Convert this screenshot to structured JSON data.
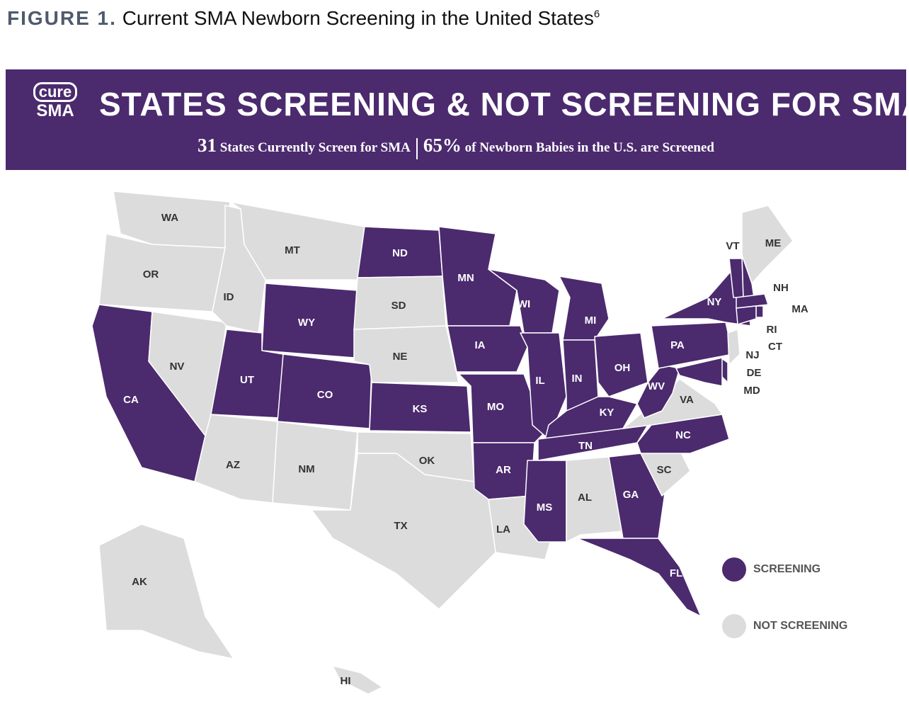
{
  "header": {
    "figure_label": "FIGURE 1.",
    "figure_title": "Current SMA Newborn Screening in the United States",
    "footnote": "6"
  },
  "banner": {
    "logo_top": "cure",
    "logo_bottom": "SMA",
    "title": "STATES SCREENING & NOT SCREENING FOR SMA",
    "states_count": "31",
    "states_text": "States Currently Screen for SMA",
    "babies_percent": "65%",
    "babies_text": "of Newborn Babies in the U.S. are Screened"
  },
  "legend": {
    "items": [
      {
        "label": "SCREENING",
        "color": "#4b2a6e"
      },
      {
        "label": "NOT SCREENING",
        "color": "#dcdcdc"
      }
    ]
  },
  "states": [
    {
      "label": "WA",
      "screening": false
    },
    {
      "label": "OR",
      "screening": false
    },
    {
      "label": "CA",
      "screening": true
    },
    {
      "label": "NV",
      "screening": false
    },
    {
      "label": "ID",
      "screening": false
    },
    {
      "label": "MT",
      "screening": false
    },
    {
      "label": "WY",
      "screening": true
    },
    {
      "label": "UT",
      "screening": true
    },
    {
      "label": "CO",
      "screening": true
    },
    {
      "label": "AZ",
      "screening": false
    },
    {
      "label": "NM",
      "screening": false
    },
    {
      "label": "ND",
      "screening": true
    },
    {
      "label": "SD",
      "screening": false
    },
    {
      "label": "NE",
      "screening": false
    },
    {
      "label": "KS",
      "screening": true
    },
    {
      "label": "OK",
      "screening": false
    },
    {
      "label": "TX",
      "screening": false
    },
    {
      "label": "MN",
      "screening": true
    },
    {
      "label": "IA",
      "screening": true
    },
    {
      "label": "MO",
      "screening": true
    },
    {
      "label": "AR",
      "screening": true
    },
    {
      "label": "LA",
      "screening": false
    },
    {
      "label": "WI",
      "screening": true
    },
    {
      "label": "IL",
      "screening": true
    },
    {
      "label": "MI",
      "screening": true
    },
    {
      "label": "IN",
      "screening": true
    },
    {
      "label": "OH",
      "screening": true
    },
    {
      "label": "KY",
      "screening": true
    },
    {
      "label": "TN",
      "screening": true
    },
    {
      "label": "MS",
      "screening": true
    },
    {
      "label": "AL",
      "screening": false
    },
    {
      "label": "GA",
      "screening": true
    },
    {
      "label": "FL",
      "screening": true
    },
    {
      "label": "SC",
      "screening": false
    },
    {
      "label": "NC",
      "screening": true
    },
    {
      "label": "VA",
      "screening": false
    },
    {
      "label": "WV",
      "screening": true
    },
    {
      "label": "PA",
      "screening": true
    },
    {
      "label": "NY",
      "screening": true
    },
    {
      "label": "VT",
      "screening": true
    },
    {
      "label": "NH",
      "screening": true
    },
    {
      "label": "ME",
      "screening": false
    },
    {
      "label": "MA",
      "screening": true
    },
    {
      "label": "RI",
      "screening": true
    },
    {
      "label": "CT",
      "screening": true
    },
    {
      "label": "NJ",
      "screening": false
    },
    {
      "label": "DE",
      "screening": true
    },
    {
      "label": "MD",
      "screening": true
    },
    {
      "label": "AK",
      "screening": false
    },
    {
      "label": "HI",
      "screening": false
    }
  ]
}
